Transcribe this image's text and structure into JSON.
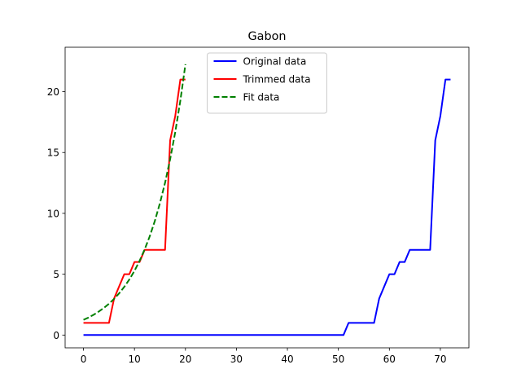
{
  "chart_data": {
    "type": "line",
    "title": "Gabon",
    "xlabel": "",
    "ylabel": "",
    "xlim": [
      -3.6,
      75.6
    ],
    "ylim": [
      -1.05,
      23.65
    ],
    "xticks": [
      0,
      10,
      20,
      30,
      40,
      50,
      60,
      70
    ],
    "yticks": [
      0,
      5,
      10,
      15,
      20
    ],
    "grid": false,
    "legend_position": "upper center",
    "series": [
      {
        "name": "Original data",
        "color": "#0000ff",
        "style": "solid",
        "x": [
          0,
          1,
          2,
          3,
          4,
          5,
          6,
          7,
          8,
          9,
          10,
          11,
          12,
          13,
          14,
          15,
          16,
          17,
          18,
          19,
          20,
          21,
          22,
          23,
          24,
          25,
          26,
          27,
          28,
          29,
          30,
          31,
          32,
          33,
          34,
          35,
          36,
          37,
          38,
          39,
          40,
          41,
          42,
          43,
          44,
          45,
          46,
          47,
          48,
          49,
          50,
          51,
          52,
          53,
          54,
          55,
          56,
          57,
          58,
          59,
          60,
          61,
          62,
          63,
          64,
          65,
          66,
          67,
          68,
          69,
          70,
          71,
          72
        ],
        "y": [
          0,
          0,
          0,
          0,
          0,
          0,
          0,
          0,
          0,
          0,
          0,
          0,
          0,
          0,
          0,
          0,
          0,
          0,
          0,
          0,
          0,
          0,
          0,
          0,
          0,
          0,
          0,
          0,
          0,
          0,
          0,
          0,
          0,
          0,
          0,
          0,
          0,
          0,
          0,
          0,
          0,
          0,
          0,
          0,
          0,
          0,
          0,
          0,
          0,
          0,
          0,
          0,
          1,
          1,
          1,
          1,
          1,
          1,
          3,
          4,
          5,
          5,
          6,
          6,
          7,
          7,
          7,
          7,
          7,
          16,
          18,
          21,
          21
        ]
      },
      {
        "name": "Trimmed data",
        "color": "#ff0000",
        "style": "solid",
        "x": [
          0,
          1,
          2,
          3,
          4,
          5,
          6,
          7,
          8,
          9,
          10,
          11,
          12,
          13,
          14,
          15,
          16,
          17,
          18,
          19,
          20
        ],
        "y": [
          1,
          1,
          1,
          1,
          1,
          1,
          3,
          4,
          5,
          5,
          6,
          6,
          7,
          7,
          7,
          7,
          7,
          16,
          18,
          21,
          21
        ]
      },
      {
        "name": "Fit data",
        "color": "#008000",
        "style": "dashed",
        "x": [
          0,
          1,
          2,
          3,
          4,
          5,
          6,
          7,
          8,
          9,
          10,
          11,
          12,
          13,
          14,
          15,
          16,
          17,
          18,
          19,
          20
        ],
        "y": [
          1.25,
          1.44,
          1.67,
          1.93,
          2.23,
          2.57,
          2.97,
          3.43,
          3.96,
          4.57,
          5.27,
          6.09,
          7.04,
          8.12,
          9.38,
          10.84,
          12.51,
          14.45,
          16.68,
          19.26,
          22.25
        ]
      }
    ]
  }
}
